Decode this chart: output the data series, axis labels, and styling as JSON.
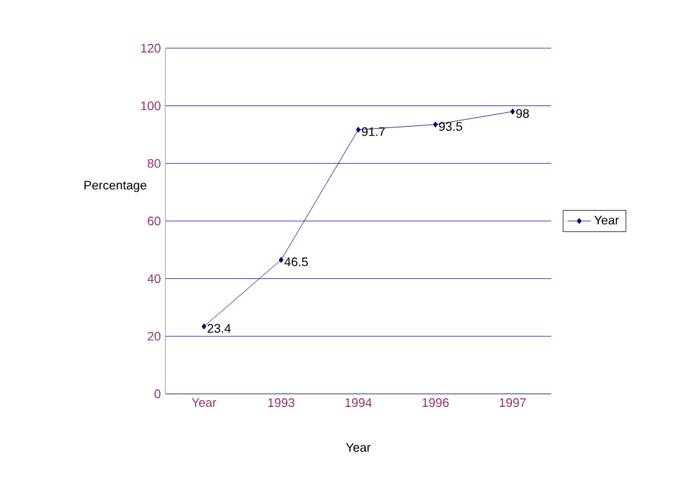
{
  "chart_data": {
    "type": "line",
    "xlabel": "Year",
    "ylabel": "Percentage",
    "categories": [
      "Year",
      "1993",
      "1994",
      "1996",
      "1997"
    ],
    "series": [
      {
        "name": "Year",
        "color": "#000080",
        "values": [
          23.4,
          46.5,
          91.7,
          93.5,
          98
        ]
      }
    ],
    "ylim": [
      0,
      120
    ],
    "yticks": [
      0,
      20,
      40,
      60,
      80,
      100,
      120
    ],
    "grid": "y",
    "legend": "right",
    "marker": "diamond",
    "line_style": "solid",
    "data_labels": true
  }
}
